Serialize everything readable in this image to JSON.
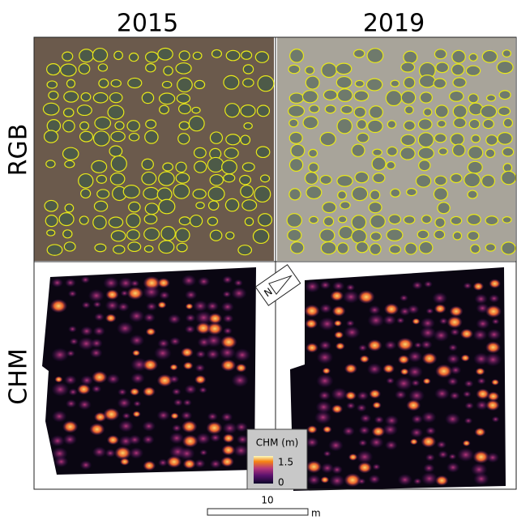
{
  "columns": [
    "2015",
    "2019"
  ],
  "rows": [
    "RGB",
    "CHM"
  ],
  "north_arrow": "N",
  "legend": {
    "title": "CHM (m)",
    "max": 1.5,
    "min": 0
  },
  "scale_bar": {
    "length": 10,
    "unit": "m"
  }
}
